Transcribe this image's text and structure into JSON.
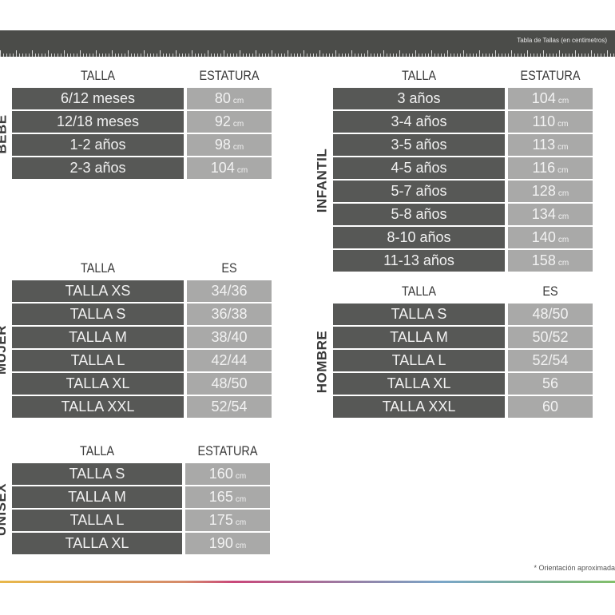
{
  "header": {
    "title": "Tabla de Tallas (en centimetros)"
  },
  "colors": {
    "dark_cell": "#575856",
    "light_cell": "#a9a9a8",
    "bar": "#4b4c49"
  },
  "tables": {
    "bebe": {
      "label": "BEBE",
      "col1": "TALLA",
      "col2": "ESTATURA",
      "rows": [
        {
          "size": "6/12 meses",
          "value": "80",
          "unit": "cm"
        },
        {
          "size": "12/18 meses",
          "value": "92",
          "unit": "cm"
        },
        {
          "size": "1-2 años",
          "value": "98",
          "unit": "cm"
        },
        {
          "size": "2-3 años",
          "value": "104",
          "unit": "cm"
        }
      ]
    },
    "infantil": {
      "label": "INFANTIL",
      "col1": "TALLA",
      "col2": "ESTATURA",
      "rows": [
        {
          "size": "3 años",
          "value": "104",
          "unit": "cm"
        },
        {
          "size": "3-4 años",
          "value": "110",
          "unit": "cm"
        },
        {
          "size": "3-5 años",
          "value": "113",
          "unit": "cm"
        },
        {
          "size": "4-5 años",
          "value": "116",
          "unit": "cm"
        },
        {
          "size": "5-7 años",
          "value": "128",
          "unit": "cm"
        },
        {
          "size": "5-8 años",
          "value": "134",
          "unit": "cm"
        },
        {
          "size": "8-10 años",
          "value": "140",
          "unit": "cm"
        },
        {
          "size": "11-13 años",
          "value": "158",
          "unit": "cm"
        }
      ]
    },
    "mujer": {
      "label": "MUJER",
      "col1": "TALLA",
      "col2": "ES",
      "rows": [
        {
          "size": "TALLA XS",
          "value": "34/36"
        },
        {
          "size": "TALLA S",
          "value": "36/38"
        },
        {
          "size": "TALLA M",
          "value": "38/40"
        },
        {
          "size": "TALLA L",
          "value": "42/44"
        },
        {
          "size": "TALLA XL",
          "value": "48/50"
        },
        {
          "size": "TALLA XXL",
          "value": "52/54"
        }
      ]
    },
    "hombre": {
      "label": "HOMBRE",
      "col1": "TALLA",
      "col2": "ES",
      "rows": [
        {
          "size": "TALLA S",
          "value": "48/50"
        },
        {
          "size": "TALLA M",
          "value": "50/52"
        },
        {
          "size": "TALLA L",
          "value": "52/54"
        },
        {
          "size": "TALLA XL",
          "value": "56"
        },
        {
          "size": "TALLA XXL",
          "value": "60"
        }
      ]
    },
    "unisex": {
      "label": "UNISEX",
      "col1": "TALLA",
      "col2": "ESTATURA",
      "rows": [
        {
          "size": "TALLA S",
          "value": "160",
          "unit": "cm"
        },
        {
          "size": "TALLA M",
          "value": "165",
          "unit": "cm"
        },
        {
          "size": "TALLA L",
          "value": "175",
          "unit": "cm"
        },
        {
          "size": "TALLA XL",
          "value": "190",
          "unit": "cm"
        }
      ]
    }
  },
  "footer": {
    "note": "* Orientación aproximada"
  }
}
